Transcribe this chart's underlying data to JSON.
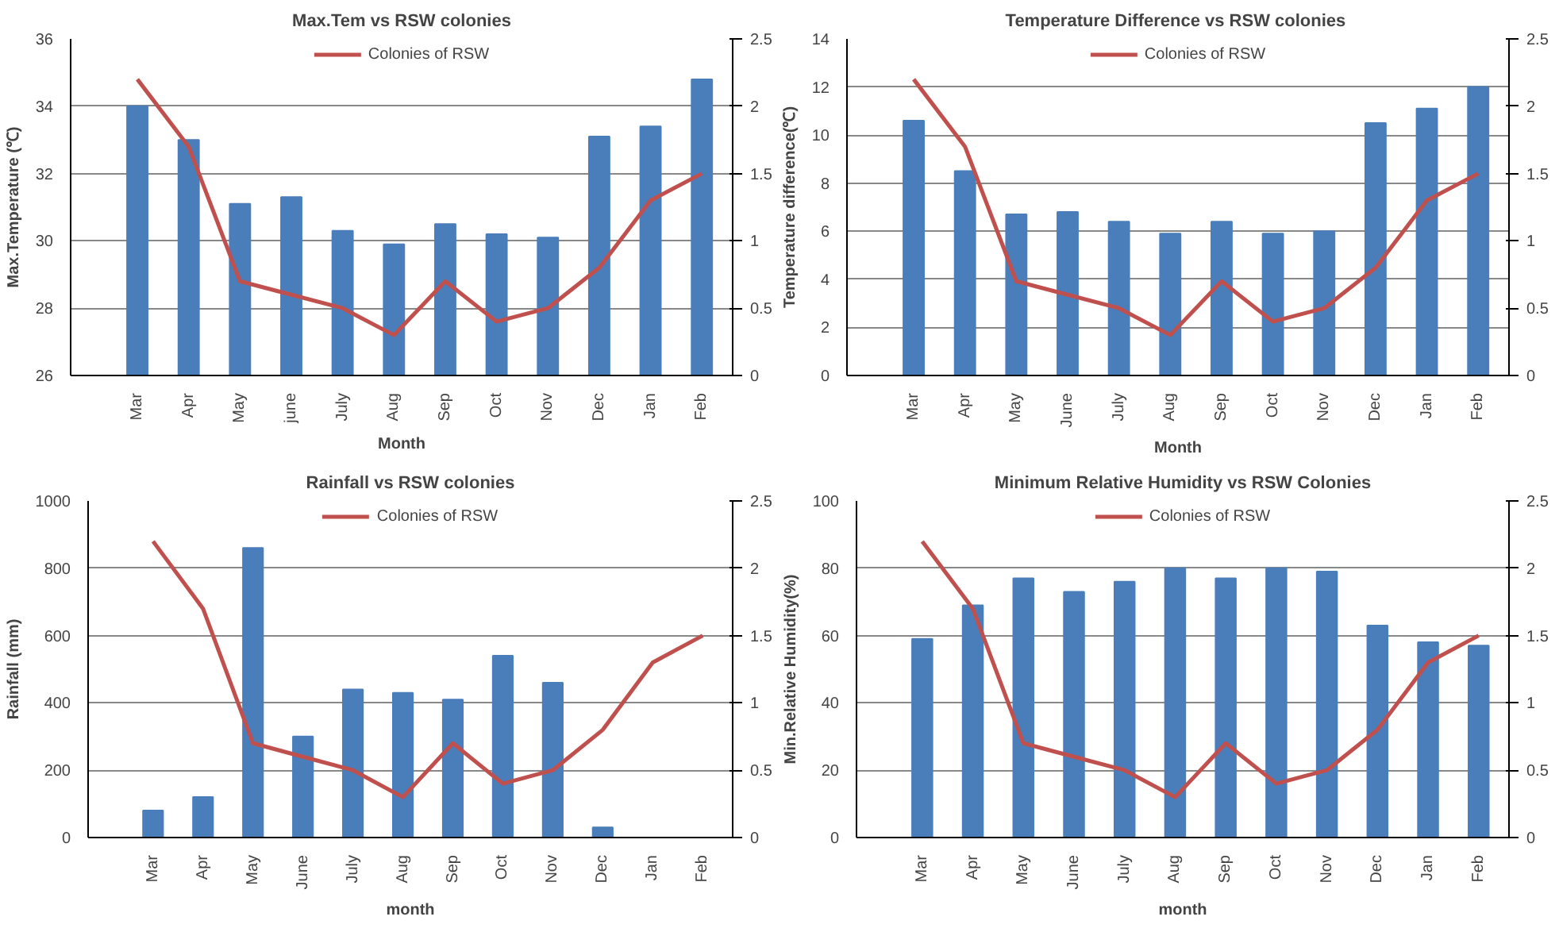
{
  "chart_data": [
    {
      "type": "bar",
      "title": "Max.Tem vs RSW colonies",
      "xlabel": "Month",
      "ylabel": "Max.Temperature (℃)",
      "categories": [
        "Mar",
        "Apr",
        "May",
        "june",
        "July",
        "Aug",
        "Sep",
        "Oct",
        "Nov",
        "Dec",
        "Jan",
        "Feb"
      ],
      "series": [
        {
          "color": "#4a7ebb",
          "values": [
            34,
            33,
            31.1,
            31.3,
            30.3,
            29.9,
            30.5,
            30.2,
            30.1,
            33.1,
            33.4,
            34.8
          ]
        },
        {
          "type": "line",
          "axis": "y2",
          "name": "Colonies of RSW",
          "color": "#c0504d",
          "values": [
            2.2,
            1.7,
            0.7,
            0.6,
            0.5,
            0.3,
            0.7,
            0.4,
            0.5,
            0.8,
            1.3,
            1.5
          ]
        }
      ],
      "ylim": [
        26,
        36
      ],
      "yticks": [
        26,
        28,
        30,
        32,
        34,
        36
      ],
      "y2lim": [
        0,
        2.5
      ],
      "y2ticks": [
        0,
        0.5,
        1,
        1.5,
        2,
        2.5
      ],
      "grid": "y",
      "legend": "top"
    },
    {
      "type": "bar",
      "title": "Temperature  Difference vs RSW colonies",
      "xlabel": "Month",
      "ylabel": "Temperature difference(℃)",
      "categories": [
        "Mar",
        "Apr",
        "May",
        "June",
        "July",
        "Aug",
        "Sep",
        "Oct",
        "Nov",
        "Dec",
        "Jan",
        "Feb"
      ],
      "series": [
        {
          "color": "#4a7ebb",
          "values": [
            10.6,
            8.5,
            6.7,
            6.8,
            6.4,
            5.9,
            6.4,
            5.9,
            6.0,
            10.5,
            11.1,
            12.0
          ]
        },
        {
          "type": "line",
          "axis": "y2",
          "name": "Colonies of RSW",
          "color": "#c0504d",
          "values": [
            2.2,
            1.7,
            0.7,
            0.6,
            0.5,
            0.3,
            0.7,
            0.4,
            0.5,
            0.8,
            1.3,
            1.5
          ]
        }
      ],
      "ylim": [
        0,
        14
      ],
      "yticks": [
        0,
        2,
        4,
        6,
        8,
        10,
        12,
        14
      ],
      "y2lim": [
        0,
        2.5
      ],
      "y2ticks": [
        0,
        0.5,
        1,
        1.5,
        2,
        2.5
      ],
      "grid": "y",
      "legend": "top"
    },
    {
      "type": "bar",
      "title": "Rainfall vs RSW colonies",
      "xlabel": "month",
      "ylabel": "Rainfall (mm)",
      "categories": [
        "Mar",
        "Apr",
        "May",
        "June",
        "July",
        "Aug",
        "Sep",
        "Oct",
        "Nov",
        "Dec",
        "Jan",
        "Feb"
      ],
      "series": [
        {
          "color": "#4a7ebb",
          "values": [
            80,
            120,
            860,
            300,
            440,
            430,
            410,
            540,
            460,
            30,
            0,
            0
          ]
        },
        {
          "type": "line",
          "axis": "y2",
          "name": "Colonies of RSW",
          "color": "#c0504d",
          "values": [
            2.2,
            1.7,
            0.7,
            0.6,
            0.5,
            0.3,
            0.7,
            0.4,
            0.5,
            0.8,
            1.3,
            1.5
          ]
        }
      ],
      "ylim": [
        0,
        1000
      ],
      "yticks": [
        0,
        200,
        400,
        600,
        800,
        1000
      ],
      "y2lim": [
        0,
        2.5
      ],
      "y2ticks": [
        0,
        0.5,
        1,
        1.5,
        2,
        2.5
      ],
      "grid": "y",
      "legend": "top"
    },
    {
      "type": "bar",
      "title": "Minimum Relative Humidity vs RSW Colonies",
      "xlabel": "month",
      "ylabel": "Min.Relative Humidity(%)",
      "categories": [
        "Mar",
        "Apr",
        "May",
        "June",
        "July",
        "Aug",
        "Sep",
        "Oct",
        "Nov",
        "Dec",
        "Jan",
        "Feb"
      ],
      "series": [
        {
          "color": "#4a7ebb",
          "values": [
            59,
            69,
            77,
            73,
            76,
            80,
            77,
            80,
            79,
            63,
            58,
            57
          ]
        },
        {
          "type": "line",
          "axis": "y2",
          "name": "Colonies of RSW",
          "color": "#c0504d",
          "values": [
            2.2,
            1.7,
            0.7,
            0.6,
            0.5,
            0.3,
            0.7,
            0.4,
            0.5,
            0.8,
            1.3,
            1.5
          ]
        }
      ],
      "ylim": [
        0,
        100
      ],
      "yticks": [
        0,
        20,
        40,
        60,
        80,
        100
      ],
      "y2lim": [
        0,
        2.5
      ],
      "y2ticks": [
        0,
        0.5,
        1,
        1.5,
        2,
        2.5
      ],
      "grid": "y",
      "legend": "top"
    }
  ]
}
